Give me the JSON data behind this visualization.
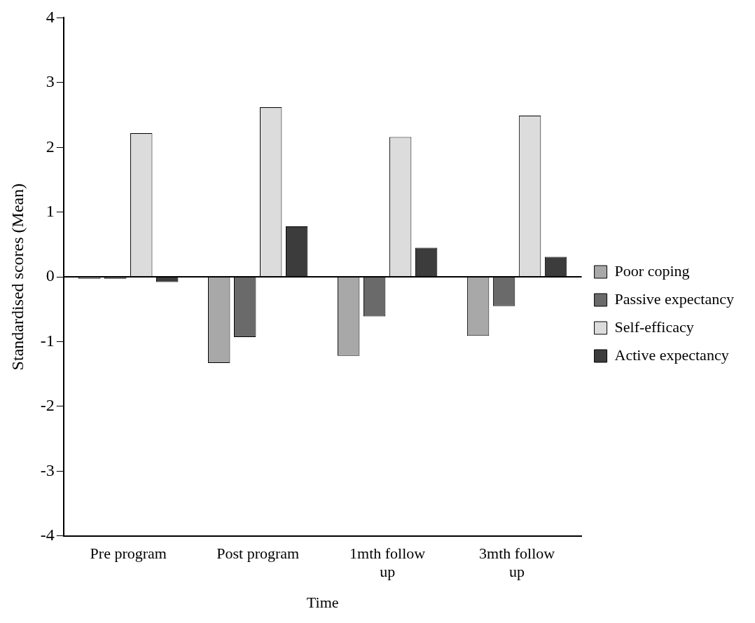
{
  "chart_data": {
    "type": "bar",
    "xlabel": "Time",
    "ylabel": "Standardised scores (Mean)",
    "categories": [
      "Pre program",
      "Post program",
      "1mth follow up",
      "3mth follow up"
    ],
    "series": [
      {
        "name": "Poor coping",
        "color": "#a8a8a8",
        "values": [
          -0.03,
          -1.33,
          -1.22,
          -0.91
        ]
      },
      {
        "name": "Passive expectancy",
        "color": "#6a6a6a",
        "values": [
          -0.03,
          -0.93,
          -0.61,
          -0.45
        ]
      },
      {
        "name": "Self-efficacy",
        "color": "#dcdcdc",
        "values": [
          2.22,
          2.62,
          2.16,
          2.49
        ]
      },
      {
        "name": "Active expectancy",
        "color": "#3c3c3c",
        "values": [
          -0.08,
          0.78,
          0.45,
          0.31
        ]
      }
    ],
    "ref_lines": [
      {
        "axis": "y",
        "value": 0
      }
    ],
    "ylim": [
      -4,
      4
    ],
    "yticks": [
      -4,
      -3,
      -2,
      -1,
      0,
      1,
      2,
      3,
      4
    ],
    "grid": false,
    "legend": "right"
  }
}
